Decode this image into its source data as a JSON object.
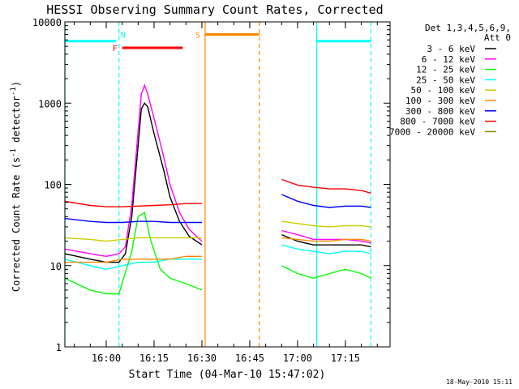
{
  "chart_data": {
    "type": "line",
    "title": "HESSI Observing Summary Count Rates, Corrected",
    "xlabel": "Start Time (04-Mar-10 15:47:02)",
    "ylabel_parts": [
      "Corrected Count Rate (s",
      "-1",
      " detector",
      "-1",
      ")"
    ],
    "yscale": "log",
    "ylim": [
      1,
      10000
    ],
    "xlim": [
      "15:47:02",
      "17:29:00"
    ],
    "x_ticks": [
      "16:00",
      "16:15",
      "16:30",
      "16:45",
      "17:00",
      "17:15"
    ],
    "y_ticks": [
      "1",
      "10",
      "100",
      "1000",
      "10000"
    ],
    "grid": false,
    "legend_title": [
      "Det 1,3,4,5,6,9,",
      "Att 0"
    ],
    "legend_position": "right",
    "series": [
      {
        "name": "3 - 6 keV",
        "color": "#000000",
        "x": [
          "15:47",
          "15:55",
          "16:00",
          "16:04",
          "16:06",
          "16:08",
          "16:10",
          "16:11",
          "16:12",
          "16:13",
          "16:15",
          "16:18",
          "16:20",
          "16:23",
          "16:26",
          "16:30",
          "16:31",
          "16:50",
          "16:55",
          "17:00",
          "17:05",
          "17:10",
          "17:15",
          "17:20",
          "17:23"
        ],
        "y": [
          14,
          12,
          11,
          11,
          14,
          40,
          300,
          850,
          1000,
          900,
          420,
          150,
          70,
          35,
          23,
          18,
          null,
          null,
          24,
          20,
          18,
          18,
          18,
          18,
          17
        ]
      },
      {
        "name": "6 - 12 keV",
        "color": "#ff00ff",
        "x": [
          "15:47",
          "15:55",
          "16:00",
          "16:04",
          "16:06",
          "16:08",
          "16:10",
          "16:11",
          "16:12",
          "16:13",
          "16:15",
          "16:18",
          "16:20",
          "16:23",
          "16:26",
          "16:30",
          "16:31",
          "16:50",
          "16:55",
          "17:00",
          "17:05",
          "17:10",
          "17:15",
          "17:20",
          "17:23"
        ],
        "y": [
          16,
          14,
          13,
          14,
          17,
          55,
          450,
          1300,
          1650,
          1300,
          650,
          220,
          100,
          45,
          28,
          20,
          null,
          null,
          27,
          24,
          21,
          21,
          21,
          20,
          19
        ]
      },
      {
        "name": "12 - 25 keV",
        "color": "#00ff00",
        "x": [
          "15:47",
          "15:55",
          "16:00",
          "16:04",
          "16:08",
          "16:10",
          "16:12",
          "16:14",
          "16:17",
          "16:20",
          "16:25",
          "16:30",
          "16:31",
          "16:50",
          "16:55",
          "17:00",
          "17:05",
          "17:10",
          "17:15",
          "17:20",
          "17:23"
        ],
        "y": [
          7,
          5,
          4.5,
          4.5,
          15,
          40,
          45,
          20,
          9,
          7,
          6,
          5,
          null,
          null,
          10,
          8,
          7,
          8,
          9,
          8,
          7
        ]
      },
      {
        "name": "25 - 50 keV",
        "color": "#00ffff",
        "x": [
          "15:47",
          "15:55",
          "16:00",
          "16:05",
          "16:10",
          "16:15",
          "16:20",
          "16:25",
          "16:30",
          "16:31",
          "16:50",
          "16:55",
          "17:00",
          "17:05",
          "17:10",
          "17:15",
          "17:20",
          "17:23"
        ],
        "y": [
          12,
          10,
          9,
          10,
          11,
          11,
          12,
          12,
          12,
          null,
          null,
          18,
          16,
          15,
          14,
          15,
          15,
          14
        ]
      },
      {
        "name": "50 - 100 keV",
        "color": "#cccc00",
        "x": [
          "15:47",
          "15:55",
          "16:00",
          "16:05",
          "16:10",
          "16:15",
          "16:20",
          "16:25",
          "16:30",
          "16:31",
          "16:50",
          "16:55",
          "17:00",
          "17:05",
          "17:10",
          "17:15",
          "17:20",
          "17:23"
        ],
        "y": [
          22,
          21,
          20,
          21,
          22,
          22,
          22,
          22,
          22,
          null,
          null,
          35,
          33,
          31,
          30,
          31,
          31,
          30
        ]
      },
      {
        "name": "100 - 300 keV",
        "color": "#ff8800",
        "x": [
          "15:47",
          "15:55",
          "16:00",
          "16:05",
          "16:10",
          "16:15",
          "16:20",
          "16:25",
          "16:30",
          "16:31",
          "16:50",
          "16:55",
          "17:00",
          "17:05",
          "17:10",
          "17:15",
          "17:20",
          "17:23"
        ],
        "y": [
          11,
          11,
          11,
          12,
          12,
          12,
          12,
          13,
          13,
          null,
          null,
          22,
          21,
          20,
          20,
          21,
          21,
          20
        ]
      },
      {
        "name": "300 - 800 keV",
        "color": "#0000ff",
        "x": [
          "15:47",
          "15:55",
          "16:00",
          "16:05",
          "16:10",
          "16:15",
          "16:20",
          "16:25",
          "16:30",
          "16:31",
          "16:50",
          "16:55",
          "17:00",
          "17:05",
          "17:10",
          "17:15",
          "17:20",
          "17:23"
        ],
        "y": [
          38,
          35,
          34,
          34,
          35,
          35,
          34,
          34,
          34,
          null,
          null,
          75,
          62,
          55,
          52,
          54,
          54,
          52
        ]
      },
      {
        "name": "800 - 7000 keV",
        "color": "#ff0000",
        "x": [
          "15:47",
          "15:55",
          "16:00",
          "16:05",
          "16:10",
          "16:15",
          "16:20",
          "16:25",
          "16:30",
          "16:31",
          "16:50",
          "16:55",
          "17:00",
          "17:05",
          "17:10",
          "17:15",
          "17:20",
          "17:23"
        ],
        "y": [
          62,
          55,
          53,
          53,
          54,
          55,
          56,
          58,
          58,
          null,
          null,
          115,
          98,
          92,
          88,
          88,
          84,
          78
        ]
      },
      {
        "name": "7000 - 20000 keV",
        "color": "#888800",
        "x": [],
        "y": []
      }
    ],
    "flag_bars": [
      {
        "label": "",
        "color": "#00ffff",
        "y": 5800,
        "x": [
          "15:47:02",
          "16:03"
        ]
      },
      {
        "label": "N",
        "color": "#00ffff",
        "y": 5800,
        "x": [
          "16:03",
          "16:03"
        ],
        "label_only": true
      },
      {
        "label": "F",
        "color": "#ff0000",
        "y": 4800,
        "x": [
          "16:05",
          "16:24"
        ]
      },
      {
        "label": "S",
        "color": "#ff8800",
        "y": 7000,
        "x": [
          "16:31",
          "16:48"
        ]
      },
      {
        "label": "",
        "color": "#00ffff",
        "y": 5800,
        "x": [
          "17:06",
          "17:23"
        ]
      }
    ],
    "vertical_lines": [
      {
        "x": "15:47:02",
        "color": "#00ffff",
        "style": "solid"
      },
      {
        "x": "16:04",
        "color": "#00ffff",
        "style": "dashed"
      },
      {
        "x": "16:31",
        "color": "#ff8800",
        "style": "solid"
      },
      {
        "x": "16:48",
        "color": "#ff8800",
        "style": "dashed"
      },
      {
        "x": "17:06",
        "color": "#00ffff",
        "style": "solid"
      },
      {
        "x": "17:23",
        "color": "#00ffff",
        "style": "dashed"
      }
    ]
  },
  "footer": {
    "timestamp": "18-May-2010 15:11"
  }
}
